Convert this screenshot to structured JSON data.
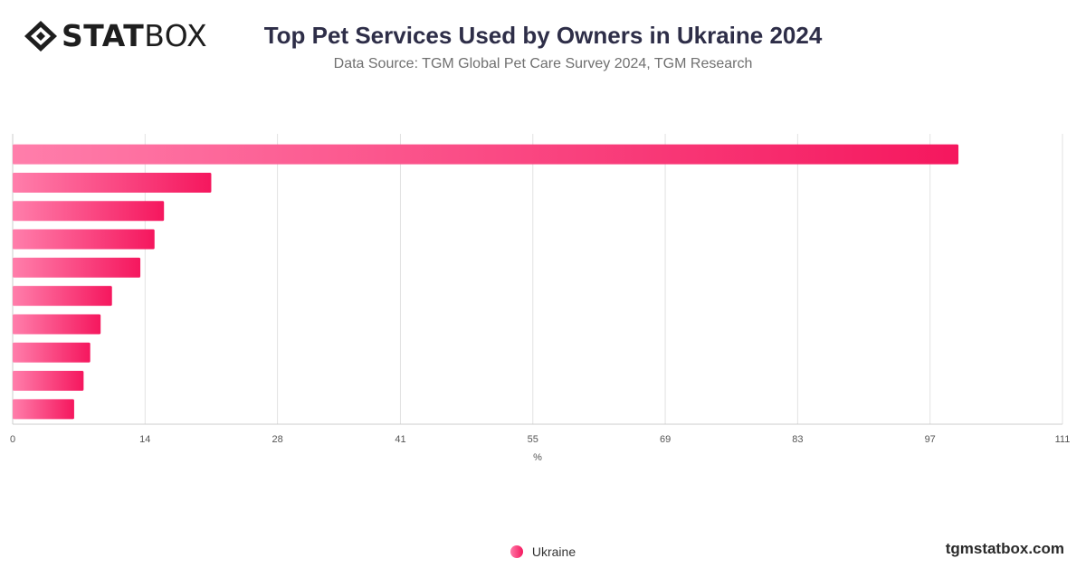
{
  "brand": {
    "logo_bold": "STAT",
    "logo_light": "BOX",
    "website": "tgmstatbox.com"
  },
  "header": {
    "title": "Top Pet Services Used by Owners in Ukraine 2024",
    "subtitle": "Data Source: TGM Global Pet Care Survey 2024, TGM Research"
  },
  "chart_data": {
    "type": "bar",
    "orientation": "horizontal",
    "categories": [
      "",
      "",
      "",
      "",
      "",
      "",
      "",
      "",
      "",
      ""
    ],
    "series": [
      {
        "name": "Ukraine",
        "values": [
          100,
          21,
          16,
          15,
          13.5,
          10.5,
          9.3,
          8.2,
          7.5,
          6.5
        ]
      }
    ],
    "xlabel": "%",
    "xlim": [
      0,
      111
    ],
    "xticks": [
      0,
      14,
      28,
      41,
      55,
      69,
      83,
      97,
      111
    ],
    "grid": true,
    "legend": "bottom-center",
    "colors": {
      "bar_start": "#ff7eab",
      "bar_end": "#f5175e",
      "grid": "#e2e2e2",
      "axis": "#cccccc"
    }
  }
}
